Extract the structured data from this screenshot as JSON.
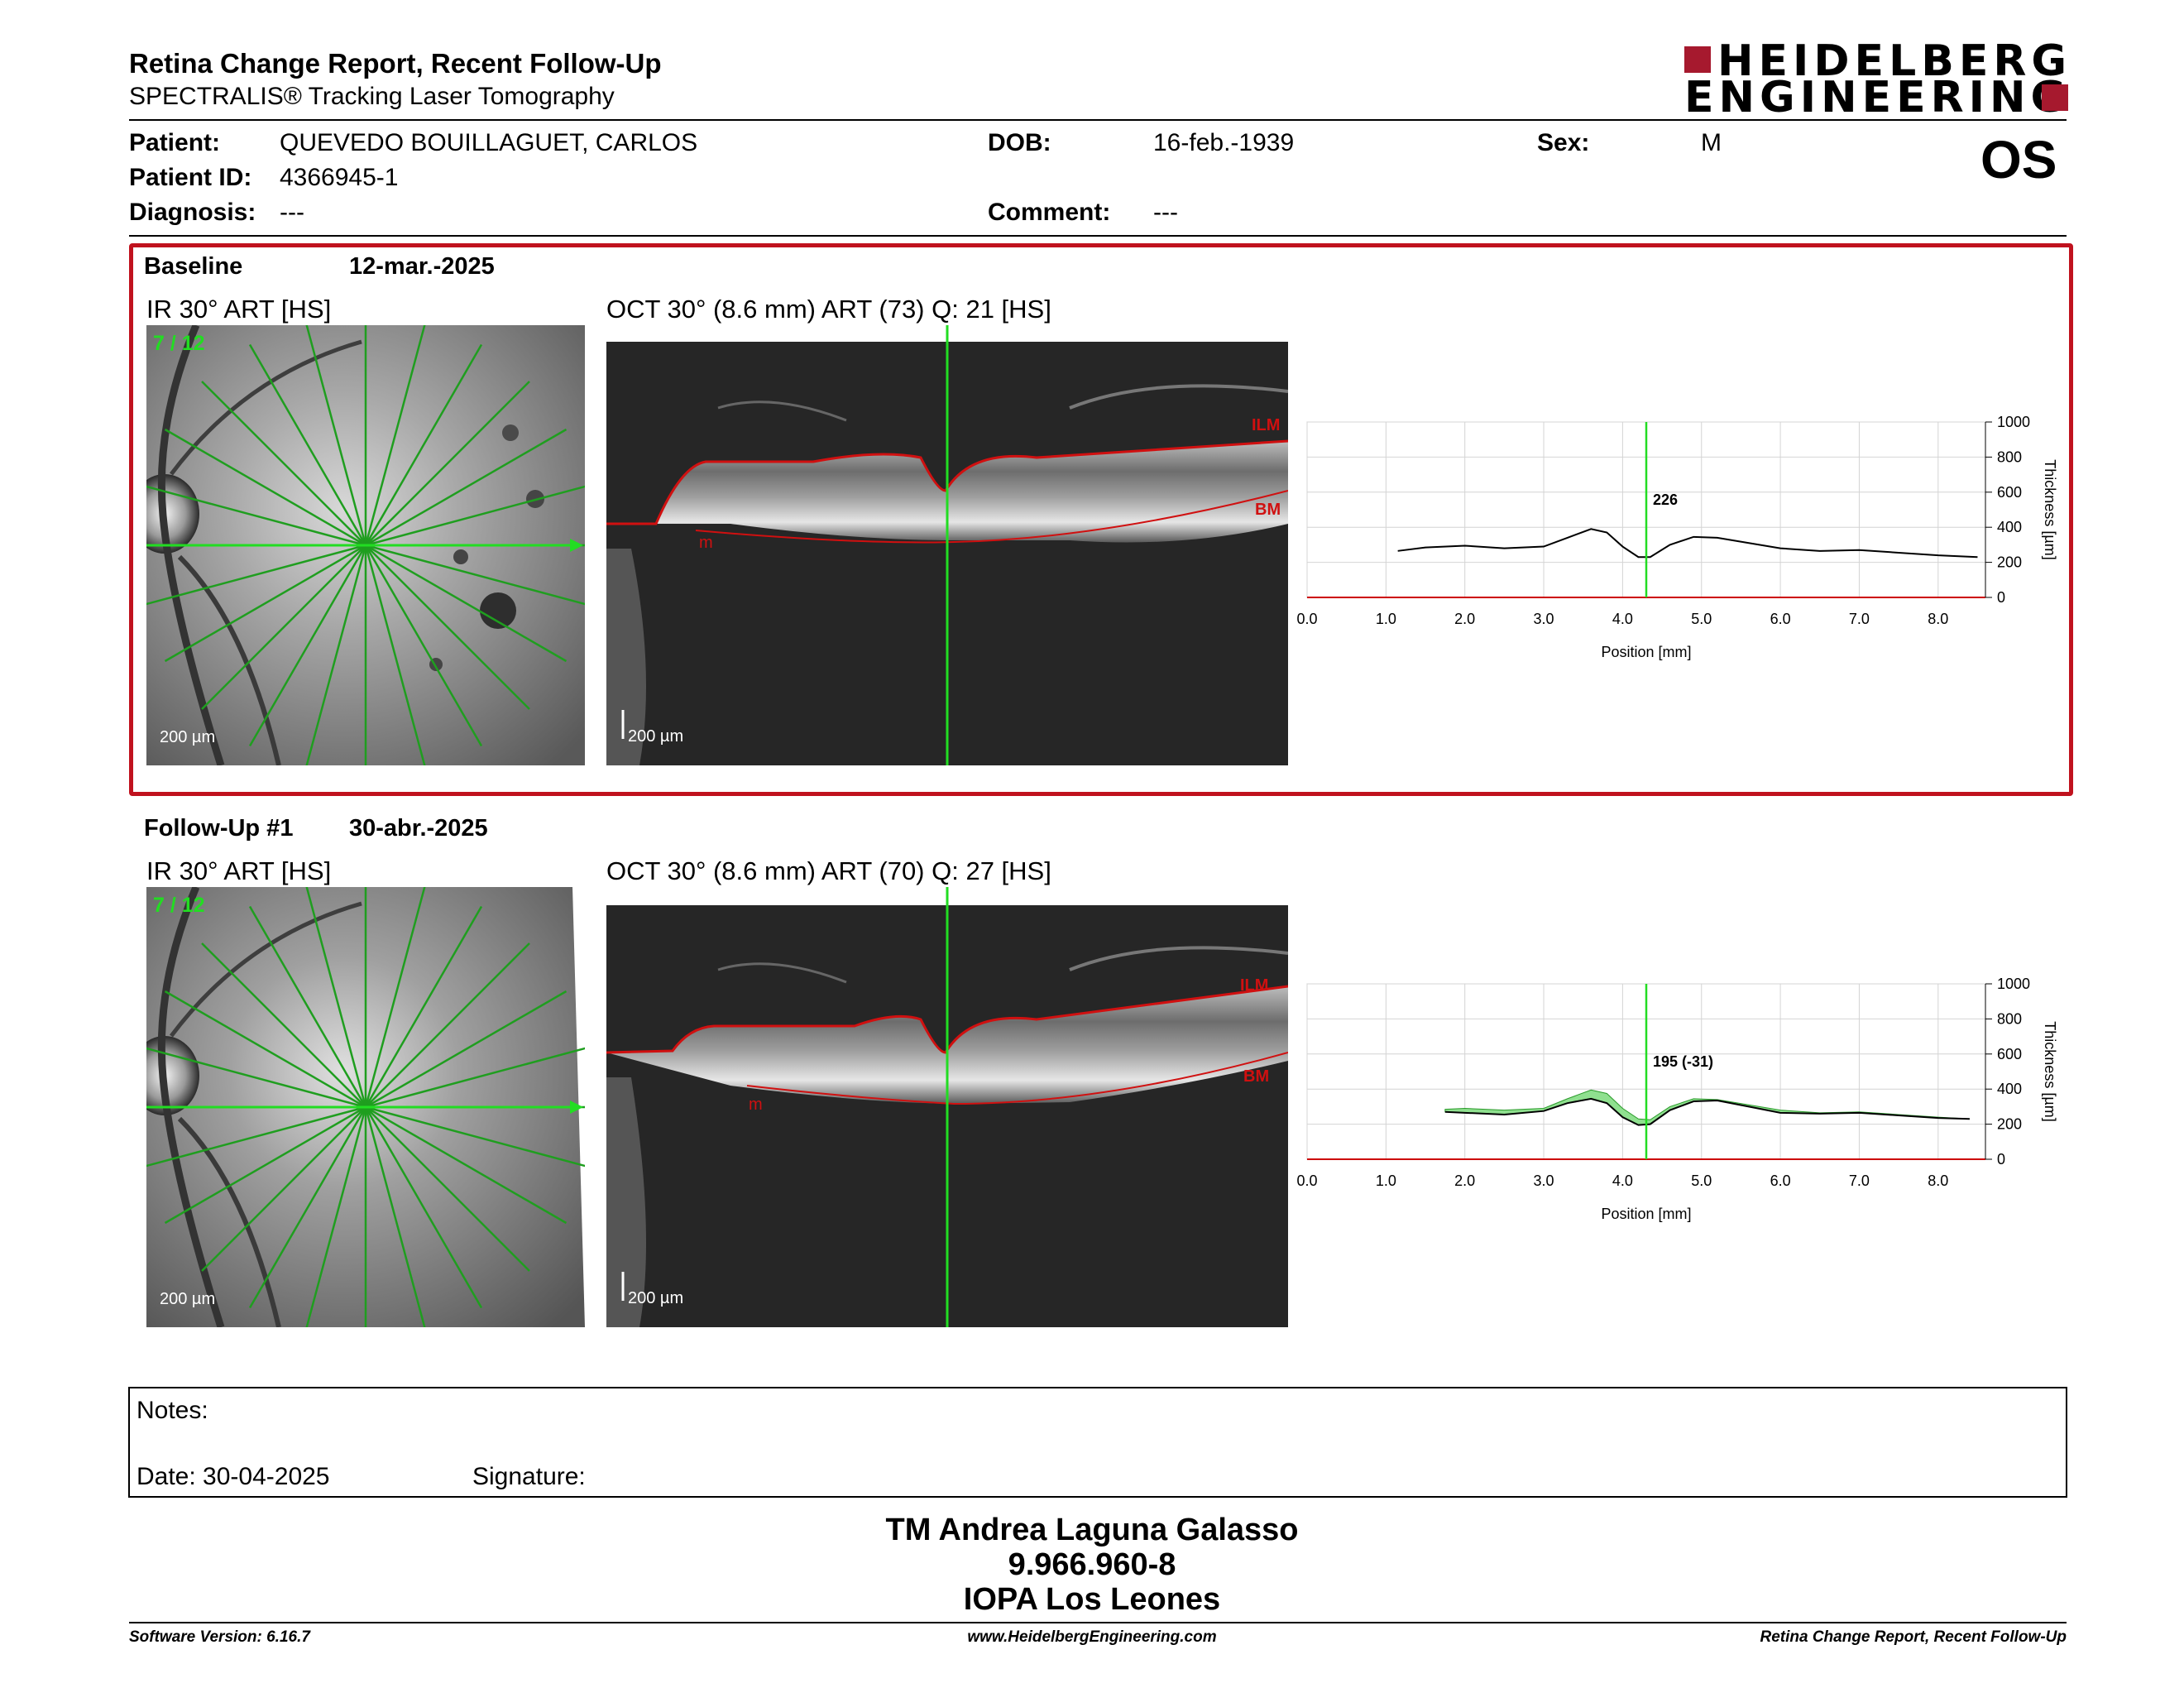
{
  "header": {
    "title": "Retina Change Report, Recent Follow-Up",
    "subtitle": "SPECTRALIS® Tracking Laser Tomography",
    "logo_line1": "HEIDELBERG",
    "logo_line2": "ENGINEERING",
    "eye": "OS"
  },
  "patient": {
    "patient_label": "Patient:",
    "patient_value": "QUEVEDO BOUILLAGUET, CARLOS",
    "id_label": "Patient ID:",
    "id_value": "4366945-1",
    "diagnosis_label": "Diagnosis:",
    "diagnosis_value": "---",
    "dob_label": "DOB:",
    "dob_value": "16-feb.-1939",
    "comment_label": "Comment:",
    "comment_value": "---",
    "sex_label": "Sex:",
    "sex_value": "M"
  },
  "baseline": {
    "label": "Baseline",
    "date": "12-mar.-2025",
    "ir_title": "IR 30° ART [HS]",
    "oct_title": "OCT 30° (8.6 mm) ART (73) Q: 21 [HS]",
    "counter": "7 / 12",
    "scale": "200 µm",
    "ilm": "ILM",
    "bm": "BM",
    "m": "m",
    "value_label": "226"
  },
  "followup": {
    "label": "Follow-Up #1",
    "date": "30-abr.-2025",
    "ir_title": "IR 30° ART [HS]",
    "oct_title": "OCT 30° (8.6 mm) ART (70) Q: 27 [HS]",
    "counter": "7 / 12",
    "scale": "200 µm",
    "ilm": "ILM",
    "bm": "BM",
    "m": "m",
    "value_label": "195 (-31)"
  },
  "chart_data": [
    {
      "type": "line",
      "x_ticks": [
        "0.0",
        "1.0",
        "2.0",
        "3.0",
        "4.0",
        "5.0",
        "6.0",
        "7.0",
        "8.0"
      ],
      "y_ticks": [
        "0",
        "200",
        "400",
        "600",
        "800",
        "1000"
      ],
      "xlabel": "Position [mm]",
      "ylabel": "Thickness [µm]",
      "xlim": [
        0,
        8.6
      ],
      "ylim": [
        0,
        1000
      ],
      "cursor_x": 4.3,
      "series": [
        {
          "x": [
            1.15,
            1.5,
            2.0,
            2.5,
            3.0,
            3.3,
            3.6,
            3.8,
            4.0,
            4.2,
            4.35,
            4.6,
            4.9,
            5.2,
            5.6,
            6.0,
            6.5,
            7.0,
            7.5,
            8.0,
            8.5
          ],
          "values": [
            265,
            285,
            295,
            280,
            290,
            340,
            390,
            370,
            290,
            230,
            230,
            300,
            345,
            340,
            310,
            280,
            265,
            270,
            255,
            240,
            230
          ]
        }
      ]
    },
    {
      "type": "line",
      "x_ticks": [
        "0.0",
        "1.0",
        "2.0",
        "3.0",
        "4.0",
        "5.0",
        "6.0",
        "7.0",
        "8.0"
      ],
      "y_ticks": [
        "0",
        "200",
        "400",
        "600",
        "800",
        "1000"
      ],
      "xlabel": "Position [mm]",
      "ylabel": "Thickness [µm]",
      "xlim": [
        0,
        8.6
      ],
      "ylim": [
        0,
        1000
      ],
      "cursor_x": 4.3,
      "series": [
        {
          "x": [
            1.75,
            2.0,
            2.5,
            3.0,
            3.3,
            3.6,
            3.8,
            4.0,
            4.2,
            4.35,
            4.6,
            4.9,
            5.2,
            5.6,
            6.0,
            6.5,
            7.0,
            7.5,
            8.0,
            8.4
          ],
          "values": [
            270,
            265,
            255,
            275,
            320,
            345,
            320,
            240,
            195,
            200,
            280,
            330,
            335,
            300,
            265,
            260,
            265,
            250,
            235,
            230
          ]
        },
        {
          "x": [
            1.75,
            2.0,
            2.5,
            3.0,
            3.3,
            3.6,
            3.8,
            4.0,
            4.2,
            4.35,
            4.6,
            4.9,
            5.2,
            5.6,
            6.0,
            6.5,
            7.0,
            7.5,
            8.0,
            8.4
          ],
          "values": [
            285,
            290,
            280,
            290,
            345,
            395,
            375,
            290,
            230,
            225,
            300,
            345,
            340,
            310,
            280,
            265,
            270,
            255,
            240,
            230
          ]
        }
      ]
    }
  ],
  "notes": {
    "label": "Notes:",
    "date_label": "Date: 30-04-2025",
    "signature_label": "Signature:"
  },
  "signature": {
    "name": "TM Andrea Laguna Galasso",
    "id": "9.966.960-8",
    "org": "IOPA Los Leones"
  },
  "footer": {
    "version": "Software Version: 6.16.7",
    "website": "www.HeidelbergEngineering.com",
    "report": "Retina Change Report, Recent Follow-Up"
  },
  "colors": {
    "accent_red": "#c0121e",
    "brand_red": "#a6192e",
    "scan_green": "#22dd22",
    "diff_green": "#8fe08f"
  }
}
